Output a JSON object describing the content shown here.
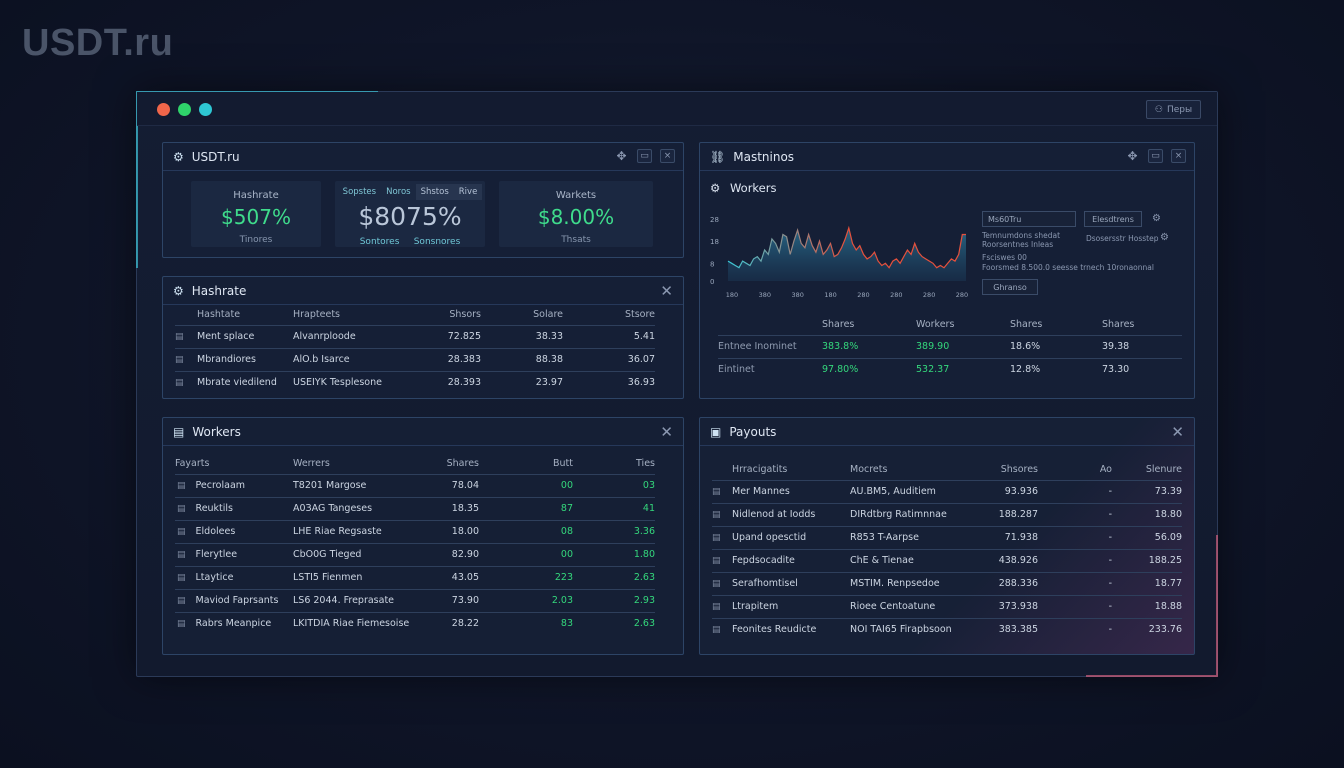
{
  "brand": "USDT.ru",
  "top_button": "Перы",
  "stats_panel": {
    "title": "USDT.ru",
    "stats": [
      {
        "label": "Hashrate",
        "value": "$507%",
        "sub": "Tinores"
      },
      {
        "tabs": [
          "Sopstes",
          "Noros",
          "Shstos",
          "Rive"
        ],
        "value": "$8075%",
        "sub_left": "Sontores",
        "sub_right": "Sonsnores"
      },
      {
        "label": "Warkets",
        "value": "$8.00%",
        "sub": "Thsats"
      }
    ]
  },
  "hashrate_panel": {
    "title": "Hashrate",
    "columns": [
      "Hashtate",
      "Hrapteets",
      "Shsors",
      "Solare",
      "Stsore"
    ],
    "rows": [
      [
        "Ment splace",
        "Alvanrploode",
        "72.825",
        "38.33",
        "5.41"
      ],
      [
        "Mbrandiores",
        "AlO.b Isarce",
        "28.383",
        "88.38",
        "36.07"
      ],
      [
        "Mbrate viedilend",
        "USEIYK Tesplesone",
        "28.393",
        "23.97",
        "36.93"
      ]
    ]
  },
  "mastnos_panel": {
    "title": "Mastninos",
    "subtitle": "Workers",
    "y_ticks": [
      "28",
      "18",
      "8",
      "0"
    ],
    "x_ticks": [
      "180",
      "380",
      "380",
      "180",
      "280",
      "280",
      "280",
      "280"
    ],
    "input_value": "Ms60Tru",
    "button_label": "Elesdtrens",
    "notes": [
      "Temnumdons shedat",
      "Roorsentnes Inleas",
      "Fsciswes 00",
      "Foorsmed 8.500.0 seesse trnech 10ronaonnal"
    ],
    "side_label": "Dsosersstr Hosstep",
    "small_button": "Ghranso",
    "columns": [
      "Shares",
      "Workers",
      "Shares",
      "Shares"
    ],
    "rows": [
      [
        "Entnee Inominet",
        "383.8%",
        "389.90",
        "18.6%",
        "39.38"
      ],
      [
        "Eintinet",
        "97.80%",
        "532.37",
        "12.8%",
        "73.30"
      ]
    ]
  },
  "chart_data": {
    "type": "area",
    "y_ticks": [
      "28",
      "18",
      "8",
      "0"
    ],
    "x_ticks": [
      "180",
      "380",
      "380",
      "180",
      "280",
      "280",
      "280",
      "280"
    ],
    "ylim": [
      0,
      28
    ],
    "series": [
      {
        "values": [
          9,
          8,
          7,
          6,
          9,
          8,
          7,
          10,
          11,
          9,
          14,
          12,
          19,
          17,
          13,
          21,
          20,
          12,
          18,
          23,
          17,
          15,
          21,
          16,
          13,
          18,
          12,
          14,
          17,
          11,
          12,
          15,
          19,
          24,
          17,
          14,
          16,
          12,
          10,
          11,
          13,
          9,
          7,
          8,
          6,
          9,
          10,
          8,
          11,
          14,
          12,
          17,
          13,
          11,
          10,
          9,
          8,
          6,
          7,
          6,
          8,
          10,
          9,
          12,
          21,
          21
        ]
      }
    ]
  },
  "workers_panel": {
    "title": "Workers",
    "columns": [
      "Fayarts",
      "Werrers",
      "Shares",
      "Butt",
      "Ties"
    ],
    "rows": [
      [
        "Pecrolaam",
        "T8201 Margose",
        "78.04",
        "00",
        "03"
      ],
      [
        "Reuktils",
        "A0ЗAG Tangeses",
        "18.35",
        "87",
        "41"
      ],
      [
        "Eldolees",
        "LHE Riae Regsaste",
        "18.00",
        "08",
        "3.36"
      ],
      [
        "Flerytlee",
        "CbO0G Tieged",
        "82.90",
        "00",
        "1.80"
      ],
      [
        "Ltaytice",
        "LSTI5 Fienmen",
        "43.05",
        "223",
        "2.63"
      ],
      [
        "Maviod Faprsants",
        "LS6 2044. Freprasate",
        "73.90",
        "2.03",
        "2.93"
      ],
      [
        "Rabrs Meanpice",
        "LKITDIA Riae Fiemesoise",
        "28.22",
        "83",
        "2.63"
      ]
    ]
  },
  "payouts_panel": {
    "title": "Payouts",
    "columns": [
      "Hrracigatits",
      "Mocrets",
      "Shsores",
      "Ao",
      "Slenure"
    ],
    "rows": [
      [
        "Mer Mannes",
        "AU.BM5, Auditiem",
        "93.936",
        "-",
        "73.39"
      ],
      [
        "Nidlenod at Iodds",
        "DIRdtbrg Ratimnnae",
        "188.287",
        "-",
        "18.80"
      ],
      [
        "Upand opesctid",
        "R853 T-Aarpse",
        "71.938",
        "-",
        "56.09"
      ],
      [
        "Fepdsocadite",
        "ChE & Tienae",
        "438.926",
        "-",
        "188.25"
      ],
      [
        "Serafhomtisel",
        "MSTIM. Renpsedoe",
        "288.336",
        "-",
        "18.77"
      ],
      [
        "Ltrapitem",
        "Rioee Centoatune",
        "373.938",
        "-",
        "18.88"
      ],
      [
        "Feonites Reudicte",
        "NOI TAI65 Firapbsoon",
        "383.385",
        "-",
        "233.76"
      ]
    ]
  },
  "colors": {
    "accent_green": "#34d77c",
    "accent_cyan": "#3dc2d6",
    "accent_pink": "#d0607e",
    "area_fill": "#2a6f8f"
  }
}
